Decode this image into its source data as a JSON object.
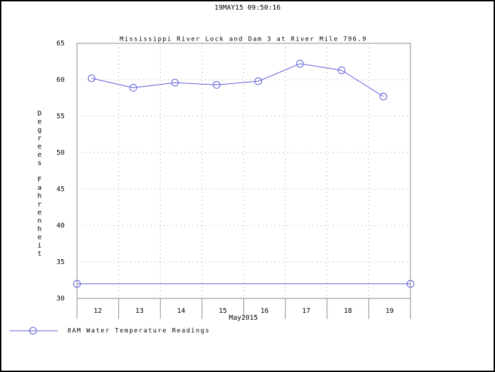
{
  "header": "19MAY15  09:50:16",
  "chart_data": {
    "type": "line",
    "title": "Mississippi River Lock and Dam 3 at River Mile 796.9",
    "y_label": "Degrees Fahrenheit",
    "x_label": "May2015",
    "categories": [
      "12",
      "13",
      "14",
      "15",
      "16",
      "17",
      "18",
      "19"
    ],
    "series": [
      {
        "name": "8AM Water Temperature Readings",
        "color": "#5a5ad8",
        "values": [
          60.2,
          58.9,
          59.6,
          59.3,
          59.8,
          62.2,
          61.3,
          57.7
        ]
      }
    ],
    "reference_line": {
      "value": 32,
      "color": "#5a5ad8"
    },
    "ylim": [
      30,
      65
    ],
    "yticks": [
      30,
      35,
      40,
      45,
      50,
      55,
      60,
      65
    ],
    "grid": true
  }
}
